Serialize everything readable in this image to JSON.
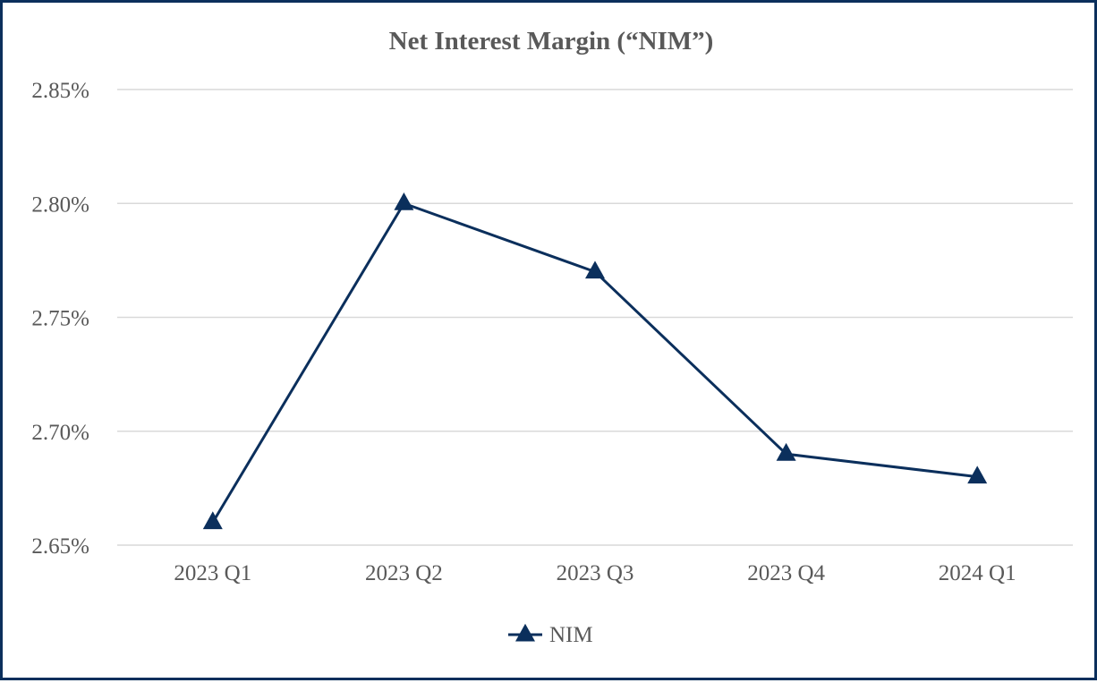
{
  "chart_data": {
    "type": "line",
    "title": "Net Interest Margin (“NIM”)",
    "xlabel": "",
    "ylabel": "",
    "categories": [
      "2023 Q1",
      "2023 Q2",
      "2023 Q3",
      "2023 Q4",
      "2024 Q1"
    ],
    "series": [
      {
        "name": "NIM",
        "values": [
          2.66,
          2.8,
          2.77,
          2.69,
          2.68
        ],
        "color": "#0b2f5c",
        "marker": "triangle"
      }
    ],
    "ylim": [
      2.65,
      2.85
    ],
    "yticks": [
      "2.65%",
      "2.70%",
      "2.75%",
      "2.80%",
      "2.85%"
    ],
    "grid": true,
    "legend_position": "bottom"
  }
}
